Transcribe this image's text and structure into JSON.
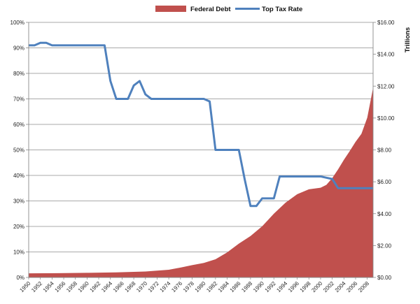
{
  "chart_data": {
    "type": "area+line",
    "title": "",
    "legend": {
      "placement": "top-center",
      "entries": [
        {
          "name": "Federal Debt",
          "color": "#c0504d",
          "style": "area"
        },
        {
          "name": "Top Tax Rate",
          "color": "#4f81bd",
          "style": "line"
        }
      ]
    },
    "grid": "horizontal",
    "x": {
      "label": "",
      "range": [
        1950,
        2009
      ],
      "tick_labels": [
        "1950",
        "1952",
        "1954",
        "1956",
        "1958",
        "1960",
        "1962",
        "1964",
        "1966",
        "1968",
        "1970",
        "1972",
        "1974",
        "1976",
        "1978",
        "1980",
        "1982",
        "1984",
        "1986",
        "1988",
        "1990",
        "1992",
        "1994",
        "1996",
        "1998",
        "2000",
        "2002",
        "2004",
        "2006",
        "2008"
      ]
    },
    "y_left": {
      "label": "",
      "range": [
        0,
        100
      ],
      "tick_labels": [
        "0%",
        "10%",
        "20%",
        "30%",
        "40%",
        "50%",
        "60%",
        "70%",
        "80%",
        "90%",
        "100%"
      ]
    },
    "y_right": {
      "label": "Trillions",
      "range": [
        0,
        16
      ],
      "tick_labels": [
        "$0.00",
        "$2.00",
        "$4.00",
        "$6.00",
        "$8.00",
        "$10.00",
        "$12.00",
        "$14.00",
        "$16.00"
      ]
    },
    "series": [
      {
        "name": "Federal Debt",
        "axis": "right",
        "unit": "trillions USD",
        "points": [
          [
            1950,
            0.26
          ],
          [
            1955,
            0.27
          ],
          [
            1960,
            0.29
          ],
          [
            1965,
            0.32
          ],
          [
            1970,
            0.37
          ],
          [
            1974,
            0.48
          ],
          [
            1976,
            0.62
          ],
          [
            1978,
            0.77
          ],
          [
            1980,
            0.91
          ],
          [
            1982,
            1.14
          ],
          [
            1984,
            1.57
          ],
          [
            1986,
            2.12
          ],
          [
            1988,
            2.6
          ],
          [
            1990,
            3.21
          ],
          [
            1992,
            4.0
          ],
          [
            1994,
            4.69
          ],
          [
            1996,
            5.22
          ],
          [
            1998,
            5.53
          ],
          [
            2000,
            5.63
          ],
          [
            2001,
            5.81
          ],
          [
            2002,
            6.23
          ],
          [
            2003,
            6.78
          ],
          [
            2004,
            7.38
          ],
          [
            2005,
            7.93
          ],
          [
            2006,
            8.51
          ],
          [
            2007,
            9.01
          ],
          [
            2008,
            10.02
          ],
          [
            2009,
            11.9
          ]
        ]
      },
      {
        "name": "Top Tax Rate",
        "axis": "left",
        "unit": "percent",
        "points": [
          [
            1950,
            91
          ],
          [
            1951,
            91
          ],
          [
            1952,
            92
          ],
          [
            1953,
            92
          ],
          [
            1954,
            91
          ],
          [
            1955,
            91
          ],
          [
            1956,
            91
          ],
          [
            1957,
            91
          ],
          [
            1958,
            91
          ],
          [
            1959,
            91
          ],
          [
            1960,
            91
          ],
          [
            1961,
            91
          ],
          [
            1962,
            91
          ],
          [
            1963,
            91
          ],
          [
            1964,
            77
          ],
          [
            1965,
            70
          ],
          [
            1966,
            70
          ],
          [
            1967,
            70
          ],
          [
            1968,
            75.25
          ],
          [
            1969,
            77
          ],
          [
            1970,
            71.75
          ],
          [
            1971,
            70
          ],
          [
            1972,
            70
          ],
          [
            1973,
            70
          ],
          [
            1974,
            70
          ],
          [
            1975,
            70
          ],
          [
            1976,
            70
          ],
          [
            1977,
            70
          ],
          [
            1978,
            70
          ],
          [
            1979,
            70
          ],
          [
            1980,
            70
          ],
          [
            1981,
            69
          ],
          [
            1982,
            50
          ],
          [
            1983,
            50
          ],
          [
            1984,
            50
          ],
          [
            1985,
            50
          ],
          [
            1986,
            50
          ],
          [
            1987,
            38.5
          ],
          [
            1988,
            28
          ],
          [
            1989,
            28
          ],
          [
            1990,
            31
          ],
          [
            1991,
            31
          ],
          [
            1992,
            31
          ],
          [
            1993,
            39.6
          ],
          [
            1994,
            39.6
          ],
          [
            1995,
            39.6
          ],
          [
            1996,
            39.6
          ],
          [
            1997,
            39.6
          ],
          [
            1998,
            39.6
          ],
          [
            1999,
            39.6
          ],
          [
            2000,
            39.6
          ],
          [
            2001,
            39.1
          ],
          [
            2002,
            38.6
          ],
          [
            2003,
            35
          ],
          [
            2004,
            35
          ],
          [
            2005,
            35
          ],
          [
            2006,
            35
          ],
          [
            2007,
            35
          ],
          [
            2008,
            35
          ],
          [
            2009,
            35
          ]
        ]
      }
    ]
  }
}
